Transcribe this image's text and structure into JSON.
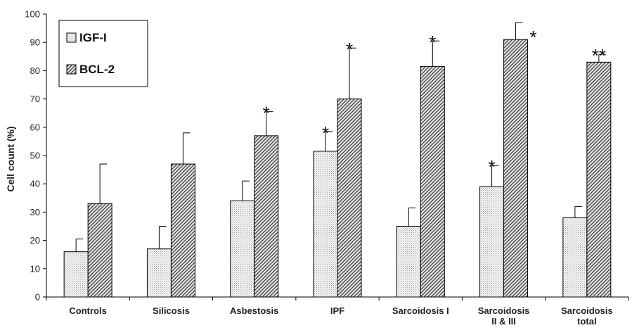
{
  "chart_data": {
    "type": "bar",
    "ylabel": "Cell count (%)",
    "xlabel": "",
    "ylim": [
      0,
      100
    ],
    "yticks": [
      0,
      10,
      20,
      30,
      40,
      50,
      60,
      70,
      80,
      90,
      100
    ],
    "grid": false,
    "legend": "top-left",
    "categories": [
      [
        "Controls"
      ],
      [
        "Silicosis"
      ],
      [
        "Asbestosis"
      ],
      [
        "IPF"
      ],
      [
        "Sarcoidosis I"
      ],
      [
        "Sarcoidosis",
        "II & III"
      ],
      [
        "Sarcoidosis",
        "total"
      ]
    ],
    "series": [
      {
        "name": "IGF-I",
        "pattern": "dots",
        "values": [
          16,
          17,
          34,
          51.5,
          25,
          39,
          28
        ],
        "error": [
          4.5,
          8,
          7,
          7,
          6.5,
          7.5,
          4
        ],
        "stars": [
          "",
          "",
          "",
          "*",
          "",
          "*",
          ""
        ]
      },
      {
        "name": "BCL-2",
        "pattern": "hatch",
        "values": [
          33,
          47,
          57,
          70,
          81.5,
          91,
          83
        ],
        "error": [
          14,
          11,
          8.5,
          18,
          9,
          6,
          2.8
        ],
        "stars": [
          "",
          "",
          "*",
          "*",
          "*",
          "*",
          "**"
        ]
      }
    ]
  }
}
